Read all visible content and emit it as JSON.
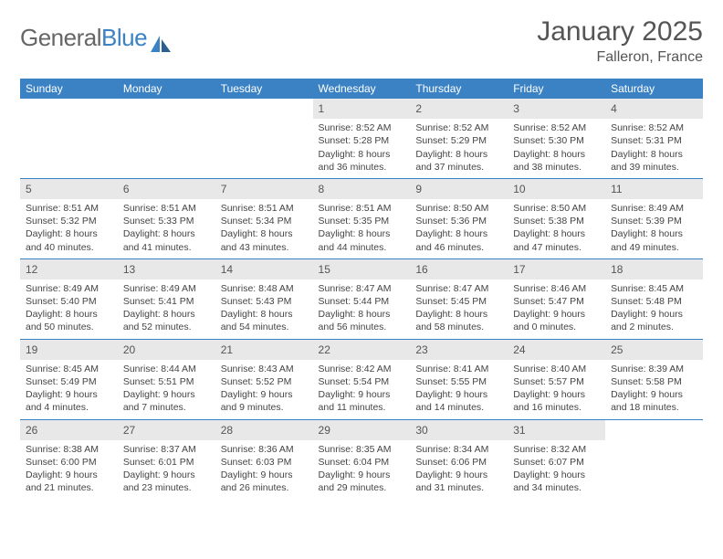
{
  "brand": {
    "part1": "General",
    "part2": "Blue"
  },
  "title": {
    "month": "January 2025",
    "location": "Falleron, France"
  },
  "colors": {
    "header_bg": "#3b82c4",
    "header_text": "#ffffff",
    "daynum_bg": "#e8e8e8",
    "rule": "#3b82c4",
    "body_text": "#444444",
    "title_text": "#555555"
  },
  "weekdays": [
    "Sunday",
    "Monday",
    "Tuesday",
    "Wednesday",
    "Thursday",
    "Friday",
    "Saturday"
  ],
  "weeks": [
    [
      {
        "n": "",
        "sr": "",
        "ss": "",
        "dl": ""
      },
      {
        "n": "",
        "sr": "",
        "ss": "",
        "dl": ""
      },
      {
        "n": "",
        "sr": "",
        "ss": "",
        "dl": ""
      },
      {
        "n": "1",
        "sr": "Sunrise: 8:52 AM",
        "ss": "Sunset: 5:28 PM",
        "dl": "Daylight: 8 hours and 36 minutes."
      },
      {
        "n": "2",
        "sr": "Sunrise: 8:52 AM",
        "ss": "Sunset: 5:29 PM",
        "dl": "Daylight: 8 hours and 37 minutes."
      },
      {
        "n": "3",
        "sr": "Sunrise: 8:52 AM",
        "ss": "Sunset: 5:30 PM",
        "dl": "Daylight: 8 hours and 38 minutes."
      },
      {
        "n": "4",
        "sr": "Sunrise: 8:52 AM",
        "ss": "Sunset: 5:31 PM",
        "dl": "Daylight: 8 hours and 39 minutes."
      }
    ],
    [
      {
        "n": "5",
        "sr": "Sunrise: 8:51 AM",
        "ss": "Sunset: 5:32 PM",
        "dl": "Daylight: 8 hours and 40 minutes."
      },
      {
        "n": "6",
        "sr": "Sunrise: 8:51 AM",
        "ss": "Sunset: 5:33 PM",
        "dl": "Daylight: 8 hours and 41 minutes."
      },
      {
        "n": "7",
        "sr": "Sunrise: 8:51 AM",
        "ss": "Sunset: 5:34 PM",
        "dl": "Daylight: 8 hours and 43 minutes."
      },
      {
        "n": "8",
        "sr": "Sunrise: 8:51 AM",
        "ss": "Sunset: 5:35 PM",
        "dl": "Daylight: 8 hours and 44 minutes."
      },
      {
        "n": "9",
        "sr": "Sunrise: 8:50 AM",
        "ss": "Sunset: 5:36 PM",
        "dl": "Daylight: 8 hours and 46 minutes."
      },
      {
        "n": "10",
        "sr": "Sunrise: 8:50 AM",
        "ss": "Sunset: 5:38 PM",
        "dl": "Daylight: 8 hours and 47 minutes."
      },
      {
        "n": "11",
        "sr": "Sunrise: 8:49 AM",
        "ss": "Sunset: 5:39 PM",
        "dl": "Daylight: 8 hours and 49 minutes."
      }
    ],
    [
      {
        "n": "12",
        "sr": "Sunrise: 8:49 AM",
        "ss": "Sunset: 5:40 PM",
        "dl": "Daylight: 8 hours and 50 minutes."
      },
      {
        "n": "13",
        "sr": "Sunrise: 8:49 AM",
        "ss": "Sunset: 5:41 PM",
        "dl": "Daylight: 8 hours and 52 minutes."
      },
      {
        "n": "14",
        "sr": "Sunrise: 8:48 AM",
        "ss": "Sunset: 5:43 PM",
        "dl": "Daylight: 8 hours and 54 minutes."
      },
      {
        "n": "15",
        "sr": "Sunrise: 8:47 AM",
        "ss": "Sunset: 5:44 PM",
        "dl": "Daylight: 8 hours and 56 minutes."
      },
      {
        "n": "16",
        "sr": "Sunrise: 8:47 AM",
        "ss": "Sunset: 5:45 PM",
        "dl": "Daylight: 8 hours and 58 minutes."
      },
      {
        "n": "17",
        "sr": "Sunrise: 8:46 AM",
        "ss": "Sunset: 5:47 PM",
        "dl": "Daylight: 9 hours and 0 minutes."
      },
      {
        "n": "18",
        "sr": "Sunrise: 8:45 AM",
        "ss": "Sunset: 5:48 PM",
        "dl": "Daylight: 9 hours and 2 minutes."
      }
    ],
    [
      {
        "n": "19",
        "sr": "Sunrise: 8:45 AM",
        "ss": "Sunset: 5:49 PM",
        "dl": "Daylight: 9 hours and 4 minutes."
      },
      {
        "n": "20",
        "sr": "Sunrise: 8:44 AM",
        "ss": "Sunset: 5:51 PM",
        "dl": "Daylight: 9 hours and 7 minutes."
      },
      {
        "n": "21",
        "sr": "Sunrise: 8:43 AM",
        "ss": "Sunset: 5:52 PM",
        "dl": "Daylight: 9 hours and 9 minutes."
      },
      {
        "n": "22",
        "sr": "Sunrise: 8:42 AM",
        "ss": "Sunset: 5:54 PM",
        "dl": "Daylight: 9 hours and 11 minutes."
      },
      {
        "n": "23",
        "sr": "Sunrise: 8:41 AM",
        "ss": "Sunset: 5:55 PM",
        "dl": "Daylight: 9 hours and 14 minutes."
      },
      {
        "n": "24",
        "sr": "Sunrise: 8:40 AM",
        "ss": "Sunset: 5:57 PM",
        "dl": "Daylight: 9 hours and 16 minutes."
      },
      {
        "n": "25",
        "sr": "Sunrise: 8:39 AM",
        "ss": "Sunset: 5:58 PM",
        "dl": "Daylight: 9 hours and 18 minutes."
      }
    ],
    [
      {
        "n": "26",
        "sr": "Sunrise: 8:38 AM",
        "ss": "Sunset: 6:00 PM",
        "dl": "Daylight: 9 hours and 21 minutes."
      },
      {
        "n": "27",
        "sr": "Sunrise: 8:37 AM",
        "ss": "Sunset: 6:01 PM",
        "dl": "Daylight: 9 hours and 23 minutes."
      },
      {
        "n": "28",
        "sr": "Sunrise: 8:36 AM",
        "ss": "Sunset: 6:03 PM",
        "dl": "Daylight: 9 hours and 26 minutes."
      },
      {
        "n": "29",
        "sr": "Sunrise: 8:35 AM",
        "ss": "Sunset: 6:04 PM",
        "dl": "Daylight: 9 hours and 29 minutes."
      },
      {
        "n": "30",
        "sr": "Sunrise: 8:34 AM",
        "ss": "Sunset: 6:06 PM",
        "dl": "Daylight: 9 hours and 31 minutes."
      },
      {
        "n": "31",
        "sr": "Sunrise: 8:32 AM",
        "ss": "Sunset: 6:07 PM",
        "dl": "Daylight: 9 hours and 34 minutes."
      },
      {
        "n": "",
        "sr": "",
        "ss": "",
        "dl": ""
      }
    ]
  ]
}
